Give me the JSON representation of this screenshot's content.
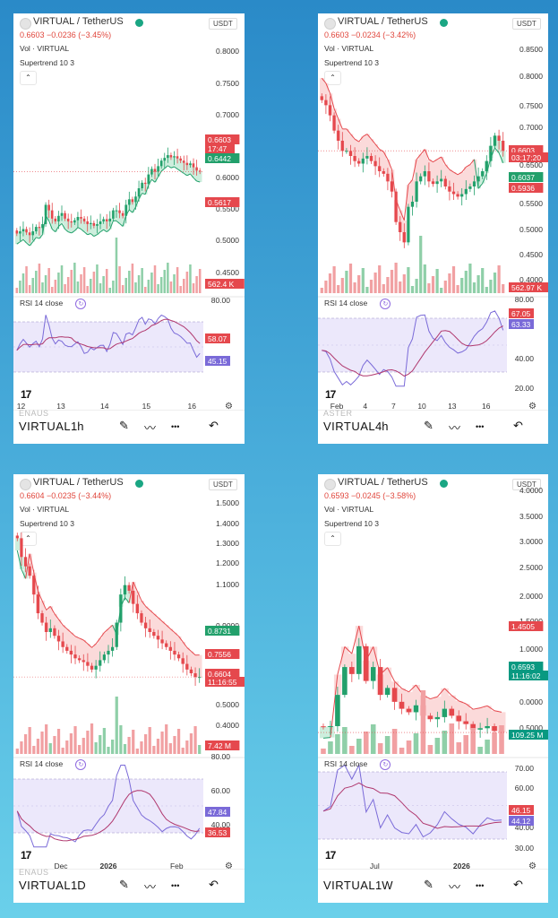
{
  "colors": {
    "up": "#22a06b",
    "down": "#e5484d",
    "upFill": "#cdeedd",
    "downFill": "#fbdada",
    "rsi": "#7a6ad8",
    "rsiMA": "#b0386e",
    "band": "#ece8fb"
  },
  "panels": [
    {
      "symbol_title": "VIRTUAL / TetherUS",
      "quote": "0.6603 −0.0236 (−3.45%)",
      "volume_label": "Vol · VIRTUAL",
      "supertrend_label": "Supertrend 10 3",
      "currency": "USDT",
      "rsi_label": "RSI 14 close",
      "interval": "1h",
      "symbol_short": "VIRTUAL",
      "ghost_symbol": "ENAUS",
      "logo_text": "17",
      "price_ticks": [
        "0.8000",
        "0.7500",
        "0.7000",
        "0.6000",
        "0.5500",
        "0.5000",
        "0.4500"
      ],
      "price_badges": [
        {
          "text": "0.6603",
          "color": "#e5484d"
        },
        {
          "text": "17:47",
          "color": "#e5484d"
        },
        {
          "text": "0.6442",
          "color": "#22a06b"
        },
        {
          "text": "0.5617",
          "color": "#e5484d"
        },
        {
          "text": "562.4 K",
          "color": "#e5484d"
        }
      ],
      "rsi_ticks": [
        "80.00",
        "40.00"
      ],
      "rsi_badges": [
        {
          "text": "58.07",
          "color": "#e5484d"
        },
        {
          "text": "45.15",
          "color": "#7a6ad8"
        }
      ],
      "x_ticks": [
        "12",
        "13",
        "14",
        "15",
        "16"
      ]
    },
    {
      "symbol_title": "VIRTUAL / TetherUS",
      "quote": "0.6603 −0.0234 (−3.42%)",
      "volume_label": "Vol · VIRTUAL",
      "supertrend_label": "Supertrend 10 3",
      "currency": "USDT",
      "rsi_label": "RSI 14 close",
      "interval": "4h",
      "symbol_short": "VIRTUAL",
      "ghost_symbol": "ASTER",
      "logo_text": "17",
      "price_ticks": [
        "0.8500",
        "0.8000",
        "0.7500",
        "0.7000",
        "0.6500",
        "0.5500",
        "0.5000",
        "0.4500",
        "0.4000"
      ],
      "price_badges": [
        {
          "text": "0.6603",
          "color": "#e5484d"
        },
        {
          "text": "03:17:20",
          "color": "#e5484d"
        },
        {
          "text": "0.6037",
          "color": "#22a06b"
        },
        {
          "text": "0.5936",
          "color": "#e5484d"
        },
        {
          "text": "562.97 K",
          "color": "#e5484d"
        }
      ],
      "rsi_ticks": [
        "80.00",
        "40.00",
        "20.00"
      ],
      "rsi_badges": [
        {
          "text": "67.05",
          "color": "#e5484d"
        },
        {
          "text": "63.33",
          "color": "#7a6ad8"
        }
      ],
      "x_ticks": [
        "Feb",
        "4",
        "7",
        "10",
        "13",
        "16"
      ]
    },
    {
      "symbol_title": "VIRTUAL / TetherUS",
      "quote": "0.6604 −0.0235 (−3.44%)",
      "volume_label": "Vol · VIRTUAL",
      "supertrend_label": "Supertrend 10 3",
      "currency": "USDT",
      "rsi_label": "RSI 14 close",
      "interval": "1D",
      "symbol_short": "VIRTUAL",
      "ghost_symbol": "ENAUS",
      "logo_text": "17",
      "price_ticks": [
        "1.5000",
        "1.4000",
        "1.3000",
        "1.2000",
        "1.1000",
        "0.9000",
        "0.5000",
        "0.4000",
        "0.3000"
      ],
      "price_badges": [
        {
          "text": "0.8731",
          "color": "#22a06b"
        },
        {
          "text": "0.7556",
          "color": "#e5484d"
        },
        {
          "text": "0.6604",
          "color": "#e5484d"
        },
        {
          "text": "11:16:55",
          "color": "#e5484d"
        },
        {
          "text": "7.42 M",
          "color": "#e5484d"
        }
      ],
      "rsi_ticks": [
        "80.00",
        "60.00",
        "40.00"
      ],
      "rsi_badges": [
        {
          "text": "47.84",
          "color": "#7a6ad8"
        },
        {
          "text": "36.53",
          "color": "#e5484d"
        }
      ],
      "x_ticks": [
        "Dec",
        "2026",
        "Feb"
      ]
    },
    {
      "symbol_title": "VIRTUAL / TetherUS",
      "quote": "0.6593 −0.0245 (−3.58%)",
      "volume_label": "Vol · VIRTUAL",
      "supertrend_label": "Supertrend 10 3",
      "currency": "USDT",
      "rsi_label": "RSI 14 close",
      "interval": "1W",
      "symbol_short": "VIRTUAL",
      "ghost_symbol": "",
      "logo_text": "17",
      "price_ticks": [
        "4.0000",
        "3.5000",
        "3.0000",
        "2.5000",
        "2.0000",
        "1.5000",
        "1.0000",
        "0.0000",
        "0.5000"
      ],
      "price_badges": [
        {
          "text": "1.4505",
          "color": "#e5484d"
        },
        {
          "text": "0.6593",
          "color": "#089981"
        },
        {
          "text": "11:16:02",
          "color": "#089981"
        },
        {
          "text": "109.25 M",
          "color": "#089981"
        }
      ],
      "rsi_ticks": [
        "70.00",
        "60.00",
        "40.00",
        "30.00"
      ],
      "rsi_badges": [
        {
          "text": "46.15",
          "color": "#e5484d"
        },
        {
          "text": "44.12",
          "color": "#7a6ad8"
        }
      ],
      "x_ticks": [
        "Jul",
        "2026"
      ]
    }
  ],
  "chart_data": [
    {
      "type": "candlestick",
      "interval": "1h",
      "closes": [
        0.548,
        0.552,
        0.556,
        0.55,
        0.545,
        0.552,
        0.56,
        0.558,
        0.565,
        0.6,
        0.59,
        0.575,
        0.57,
        0.58,
        0.585,
        0.575,
        0.57,
        0.568,
        0.572,
        0.578,
        0.575,
        0.57,
        0.565,
        0.567,
        0.562,
        0.565,
        0.57,
        0.574,
        0.57,
        0.575,
        0.59,
        0.59,
        0.585,
        0.58,
        0.6,
        0.61,
        0.605,
        0.615,
        0.63,
        0.64,
        0.638,
        0.655,
        0.665,
        0.66,
        0.67,
        0.68,
        0.685,
        0.69,
        0.686,
        0.688,
        0.684,
        0.68,
        0.676,
        0.672,
        0.675,
        0.668,
        0.662,
        0.6603
      ],
      "supertrend": {
        "dir": [
          1,
          1,
          1,
          1,
          1,
          1,
          1,
          1,
          1,
          1,
          1,
          1,
          1,
          1,
          1,
          1,
          1,
          1,
          1,
          1,
          1,
          1,
          1,
          1,
          1,
          1,
          1,
          1,
          1,
          1,
          1,
          1,
          1,
          1,
          1,
          1,
          1,
          1,
          1,
          1,
          1,
          1,
          1,
          1,
          1,
          1,
          1,
          1,
          1,
          1,
          1,
          1,
          1,
          1,
          1,
          1,
          1,
          1
        ]
      },
      "rsi_range": [
        20,
        90
      ]
    },
    {
      "type": "candlestick",
      "interval": "4h",
      "closes": [
        0.76,
        0.75,
        0.73,
        0.7,
        0.68,
        0.66,
        0.66,
        0.65,
        0.64,
        0.635,
        0.645,
        0.65,
        0.64,
        0.63,
        0.62,
        0.615,
        0.6,
        0.58,
        0.52,
        0.5,
        0.48,
        0.55,
        0.56,
        0.6,
        0.61,
        0.62,
        0.6,
        0.595,
        0.6,
        0.605,
        0.59,
        0.58,
        0.575,
        0.57,
        0.575,
        0.585,
        0.59,
        0.6,
        0.61,
        0.62,
        0.64,
        0.67,
        0.69,
        0.68,
        0.6603
      ],
      "rsi_range": [
        10,
        90
      ]
    },
    {
      "type": "candlestick",
      "interval": "1D",
      "closes": [
        1.4,
        1.3,
        1.25,
        1.2,
        1.1,
        1.0,
        0.95,
        0.9,
        0.92,
        0.88,
        0.85,
        0.82,
        0.8,
        0.78,
        0.76,
        0.75,
        0.74,
        0.72,
        0.7,
        0.72,
        0.75,
        0.78,
        0.8,
        0.82,
        0.95,
        1.1,
        1.15,
        1.12,
        1.05,
        1.0,
        0.95,
        0.92,
        0.9,
        0.88,
        0.86,
        0.84,
        0.82,
        0.8,
        0.78,
        0.76,
        0.73,
        0.7,
        0.68,
        0.66,
        0.6604
      ],
      "rsi_range": [
        20,
        90
      ]
    },
    {
      "type": "candlestick",
      "interval": "1W",
      "closes": [
        0.74,
        0.75,
        1.2,
        1.6,
        1.5,
        1.9,
        1.4,
        1.6,
        1.2,
        1.3,
        1.1,
        1.0,
        0.95,
        1.05,
        0.9,
        0.85,
        0.88,
        1.0,
        0.9,
        0.82,
        0.78,
        0.7,
        0.72,
        0.75,
        0.68,
        0.6593
      ],
      "rsi_range": [
        25,
        75
      ]
    }
  ]
}
